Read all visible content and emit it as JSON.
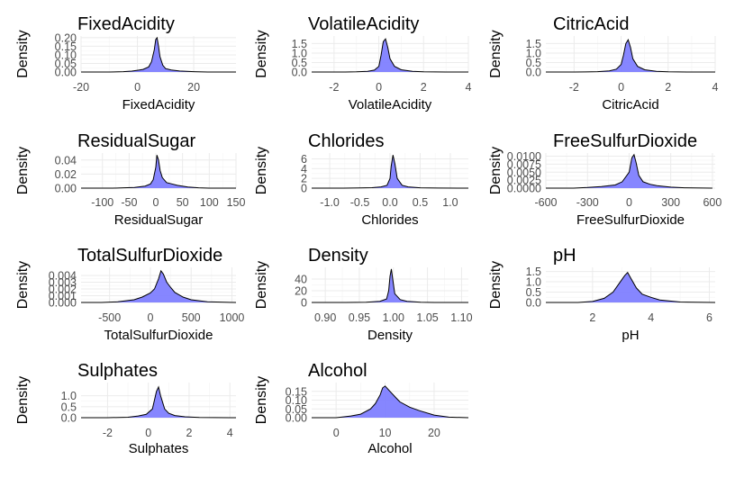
{
  "colors": {
    "fill": "#8080ff",
    "line": "#000000",
    "tick_text": "#4d4d4d",
    "grid": "#ebebeb"
  },
  "chart_data": [
    {
      "type": "area",
      "title": "FixedAcidity",
      "xlabel": "FixedAcidity",
      "ylabel": "Density",
      "xlim": [
        -20,
        35
      ],
      "ylim": [
        0,
        0.21
      ],
      "grid": true,
      "xticks": [
        -20,
        0,
        20
      ],
      "xtick_labels": [
        "-20",
        "0",
        "20"
      ],
      "yticks": [
        0,
        0.05,
        0.1,
        0.15,
        0.2
      ],
      "ytick_labels": [
        "0.00",
        "0.05",
        "0.10",
        "0.15",
        "0.20"
      ],
      "x": [
        -20,
        -10,
        -5,
        -2,
        0,
        2,
        4,
        5,
        6,
        6.5,
        7,
        7.5,
        8,
        9,
        10,
        12,
        15,
        20,
        25,
        35
      ],
      "y": [
        0,
        0,
        0.002,
        0.005,
        0.01,
        0.015,
        0.03,
        0.06,
        0.13,
        0.19,
        0.2,
        0.15,
        0.09,
        0.04,
        0.02,
        0.012,
        0.006,
        0.002,
        0,
        0
      ]
    },
    {
      "type": "area",
      "title": "VolatileAcidity",
      "xlabel": "VolatileAcidity",
      "ylabel": "Density",
      "xlim": [
        -3,
        4
      ],
      "ylim": [
        0,
        1.9
      ],
      "grid": true,
      "xticks": [
        -2,
        0,
        2,
        4
      ],
      "xtick_labels": [
        "-2",
        "0",
        "2",
        "4"
      ],
      "yticks": [
        0,
        0.5,
        1,
        1.5
      ],
      "ytick_labels": [
        "0.0",
        "0.5",
        "1.0",
        "1.5"
      ],
      "x": [
        -3,
        -1.5,
        -1,
        -0.5,
        -0.2,
        0,
        0.1,
        0.2,
        0.3,
        0.4,
        0.5,
        0.7,
        1,
        1.5,
        2,
        3,
        4
      ],
      "y": [
        0,
        0,
        0.01,
        0.04,
        0.1,
        0.3,
        0.9,
        1.6,
        1.75,
        1.3,
        0.7,
        0.3,
        0.12,
        0.04,
        0.01,
        0,
        0
      ]
    },
    {
      "type": "area",
      "title": "CitricAcid",
      "xlabel": "CitricAcid",
      "ylabel": "Density",
      "xlim": [
        -3.2,
        4
      ],
      "ylim": [
        0,
        1.9
      ],
      "grid": true,
      "xticks": [
        -2,
        0,
        2,
        4
      ],
      "xtick_labels": [
        "-2",
        "0",
        "2",
        "4"
      ],
      "yticks": [
        0,
        0.5,
        1,
        1.5
      ],
      "ytick_labels": [
        "0.0",
        "0.5",
        "1.0",
        "1.5"
      ],
      "x": [
        -3.2,
        -2,
        -1.5,
        -1,
        -0.5,
        -0.2,
        0,
        0.1,
        0.2,
        0.3,
        0.4,
        0.5,
        0.7,
        1,
        1.5,
        2,
        3,
        4
      ],
      "y": [
        0,
        0,
        0.005,
        0.02,
        0.06,
        0.15,
        0.4,
        0.9,
        1.5,
        1.7,
        1.3,
        0.7,
        0.3,
        0.12,
        0.04,
        0.01,
        0,
        0
      ]
    },
    {
      "type": "area",
      "title": "ResidualSugar",
      "xlabel": "ResidualSugar",
      "ylabel": "Density",
      "xlim": [
        -140,
        150
      ],
      "ylim": [
        0,
        0.05
      ],
      "grid": true,
      "xticks": [
        -100,
        -50,
        0,
        50,
        100,
        150
      ],
      "xtick_labels": [
        "-100",
        "-50",
        "0",
        "50",
        "100",
        "150"
      ],
      "yticks": [
        0,
        0.02,
        0.04
      ],
      "ytick_labels": [
        "0.00",
        "0.02",
        "0.04"
      ],
      "x": [
        -140,
        -80,
        -60,
        -40,
        -20,
        -10,
        -5,
        0,
        2,
        5,
        8,
        12,
        20,
        30,
        40,
        60,
        80,
        100,
        150
      ],
      "y": [
        0,
        0,
        0.0005,
        0.001,
        0.003,
        0.006,
        0.012,
        0.03,
        0.047,
        0.04,
        0.025,
        0.015,
        0.008,
        0.006,
        0.004,
        0.0015,
        0.0005,
        0,
        0
      ]
    },
    {
      "type": "area",
      "title": "Chlorides",
      "xlabel": "Chlorides",
      "ylabel": "Density",
      "xlim": [
        -1.3,
        1.3
      ],
      "ylim": [
        0,
        7.2
      ],
      "grid": true,
      "xticks": [
        -1,
        -0.5,
        0,
        0.5,
        1
      ],
      "xtick_labels": [
        "-1.0",
        "-0.5",
        "0.0",
        "0.5",
        "1.0"
      ],
      "yticks": [
        0,
        2,
        4,
        6
      ],
      "ytick_labels": [
        "0",
        "2",
        "4",
        "6"
      ],
      "x": [
        -1.3,
        -0.8,
        -0.5,
        -0.3,
        -0.15,
        -0.05,
        0,
        0.02,
        0.05,
        0.08,
        0.12,
        0.2,
        0.3,
        0.5,
        0.8,
        1.3
      ],
      "y": [
        0,
        0,
        0.03,
        0.1,
        0.25,
        0.6,
        2.0,
        4.5,
        6.8,
        5.0,
        2.0,
        0.6,
        0.25,
        0.08,
        0.02,
        0
      ]
    },
    {
      "type": "area",
      "title": "FreeSulfurDioxide",
      "xlabel": "FreeSulfurDioxide",
      "ylabel": "Density",
      "xlim": [
        -600,
        620
      ],
      "ylim": [
        0,
        0.011
      ],
      "grid": true,
      "xticks": [
        -600,
        -300,
        0,
        300,
        600
      ],
      "xtick_labels": [
        "-600",
        "-300",
        "0",
        "300",
        "600"
      ],
      "yticks": [
        0,
        0.0025,
        0.005,
        0.0075,
        0.01
      ],
      "ytick_labels": [
        "0.0000",
        "0.0025",
        "0.0050",
        "0.0075",
        "0.0100"
      ],
      "x": [
        -600,
        -400,
        -300,
        -200,
        -100,
        -50,
        0,
        20,
        35,
        50,
        70,
        100,
        150,
        200,
        300,
        400,
        600
      ],
      "y": [
        0,
        0,
        0.0002,
        0.0005,
        0.001,
        0.002,
        0.005,
        0.0095,
        0.0105,
        0.008,
        0.004,
        0.002,
        0.0012,
        0.0008,
        0.0003,
        0.0001,
        0
      ]
    },
    {
      "type": "area",
      "title": "TotalSulfurDioxide",
      "xlabel": "TotalSulfurDioxide",
      "ylabel": "Density",
      "xlim": [
        -850,
        1050
      ],
      "ylim": [
        0,
        0.0052
      ],
      "grid": true,
      "xticks": [
        -500,
        0,
        500,
        1000
      ],
      "xtick_labels": [
        "-500",
        "0",
        "500",
        "1000"
      ],
      "yticks": [
        0,
        0.001,
        0.002,
        0.003,
        0.004
      ],
      "ytick_labels": [
        "0.000",
        "0.001",
        "0.002",
        "0.003",
        "0.004"
      ],
      "x": [
        -850,
        -600,
        -400,
        -200,
        -100,
        0,
        50,
        100,
        130,
        160,
        200,
        250,
        300,
        400,
        500,
        700,
        1050
      ],
      "y": [
        0,
        0,
        0.0001,
        0.0004,
        0.0008,
        0.0014,
        0.002,
        0.0035,
        0.0047,
        0.0042,
        0.003,
        0.0022,
        0.0015,
        0.0008,
        0.0004,
        0.0001,
        0
      ]
    },
    {
      "type": "area",
      "title": "Density",
      "xlabel": "Density",
      "ylabel": "Density",
      "xlim": [
        0.88,
        1.11
      ],
      "ylim": [
        0,
        60
      ],
      "grid": true,
      "xticks": [
        0.9,
        0.95,
        1,
        1.05,
        1.1
      ],
      "xtick_labels": [
        "0.90",
        "0.95",
        "1.00",
        "1.05",
        "1.10"
      ],
      "yticks": [
        0,
        20,
        40
      ],
      "ytick_labels": [
        "0",
        "20",
        "40"
      ],
      "x": [
        0.88,
        0.93,
        0.96,
        0.98,
        0.99,
        0.993,
        0.995,
        0.997,
        0.999,
        1.002,
        1.01,
        1.02,
        1.04,
        1.06,
        1.11
      ],
      "y": [
        0,
        0,
        0.5,
        2,
        6,
        20,
        45,
        57,
        40,
        15,
        5,
        2,
        0.5,
        0,
        0
      ]
    },
    {
      "type": "area",
      "title": "pH",
      "xlabel": "pH",
      "ylabel": "Density",
      "xlim": [
        0.4,
        6.2
      ],
      "ylim": [
        0,
        1.7
      ],
      "grid": true,
      "xticks": [
        2,
        4,
        6
      ],
      "xtick_labels": [
        "2",
        "4",
        "6"
      ],
      "yticks": [
        0,
        0.5,
        1,
        1.5
      ],
      "ytick_labels": [
        "0.0",
        "0.5",
        "1.0",
        "1.5"
      ],
      "x": [
        0.4,
        1.5,
        2,
        2.4,
        2.7,
        2.9,
        3.1,
        3.2,
        3.3,
        3.5,
        3.7,
        4,
        4.3,
        5,
        6.2
      ],
      "y": [
        0,
        0,
        0.05,
        0.2,
        0.5,
        0.9,
        1.3,
        1.45,
        1.2,
        0.7,
        0.4,
        0.25,
        0.12,
        0.02,
        0
      ]
    },
    {
      "type": "area",
      "title": "Sulphates",
      "xlabel": "Sulphates",
      "ylabel": "Density",
      "xlim": [
        -3.3,
        4.3
      ],
      "ylim": [
        0,
        1.6
      ],
      "grid": true,
      "xticks": [
        -2,
        0,
        2,
        4
      ],
      "xtick_labels": [
        "-2",
        "0",
        "2",
        "4"
      ],
      "yticks": [
        0,
        0.5,
        1
      ],
      "ytick_labels": [
        "0.0",
        "0.5",
        "1.0"
      ],
      "x": [
        -3.3,
        -2,
        -1,
        -0.5,
        -0.1,
        0.2,
        0.4,
        0.5,
        0.6,
        0.8,
        1,
        1.3,
        1.8,
        2.5,
        4.3
      ],
      "y": [
        0,
        0,
        0.02,
        0.08,
        0.15,
        0.4,
        1.2,
        1.4,
        1.0,
        0.4,
        0.2,
        0.1,
        0.04,
        0.01,
        0
      ]
    },
    {
      "type": "area",
      "title": "Alcohol",
      "xlabel": "Alcohol",
      "ylabel": "Density",
      "xlim": [
        -5,
        27
      ],
      "ylim": [
        0,
        0.2
      ],
      "grid": true,
      "xticks": [
        0,
        10,
        20
      ],
      "xtick_labels": [
        "0",
        "10",
        "20"
      ],
      "yticks": [
        0,
        0.05,
        0.1,
        0.15
      ],
      "ytick_labels": [
        "0.00",
        "0.05",
        "0.10",
        "0.15"
      ],
      "x": [
        -5,
        0,
        3,
        5,
        7,
        8,
        9,
        9.5,
        10,
        11,
        12,
        13,
        15,
        17,
        20,
        23,
        27
      ],
      "y": [
        0,
        0,
        0.01,
        0.02,
        0.05,
        0.08,
        0.13,
        0.17,
        0.18,
        0.15,
        0.12,
        0.09,
        0.06,
        0.04,
        0.015,
        0.003,
        0
      ]
    }
  ]
}
